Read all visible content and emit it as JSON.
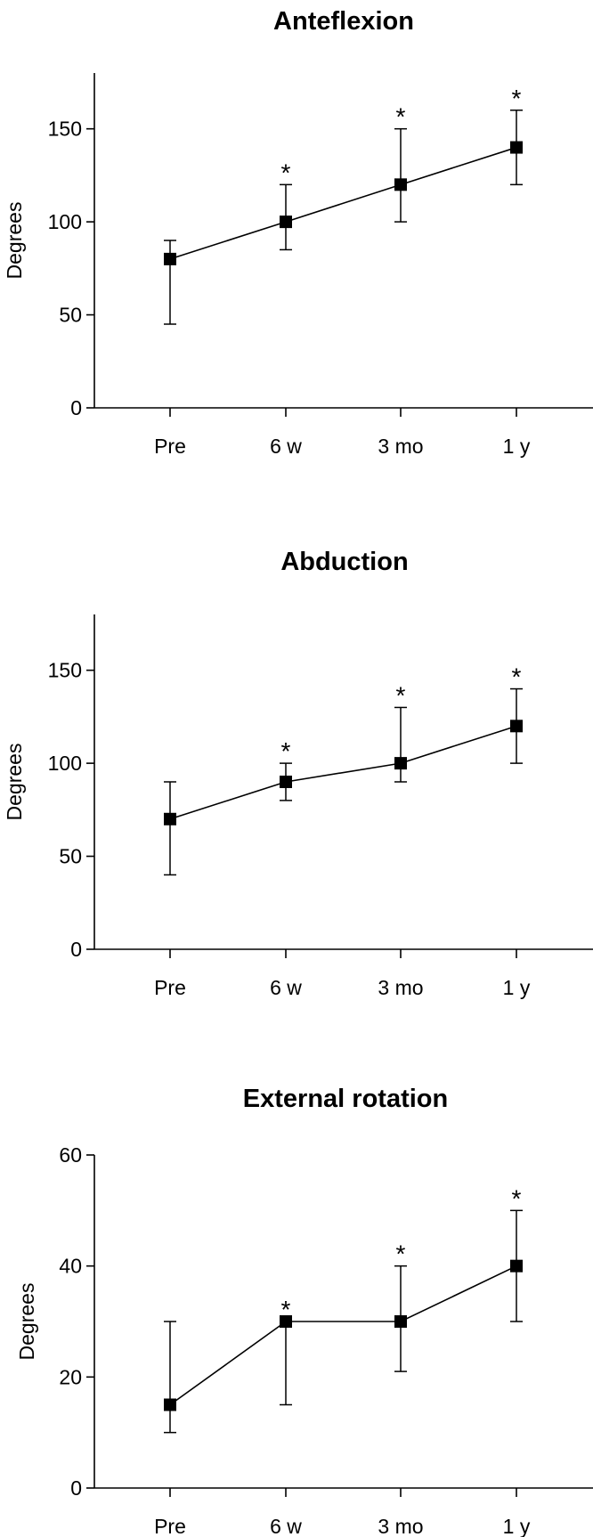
{
  "chart_data": [
    {
      "type": "line",
      "title": "Anteflexion",
      "ylabel": "Degrees",
      "xlabel": "",
      "categories": [
        "Pre",
        "6 w",
        "3 mo",
        "1 y"
      ],
      "ylim": [
        0,
        180
      ],
      "yticks": [
        0,
        50,
        100,
        150
      ],
      "grid": false,
      "series": [
        {
          "values": [
            80,
            100,
            120,
            140
          ],
          "error_low": [
            45,
            85,
            100,
            120
          ],
          "error_high": [
            90,
            120,
            150,
            160
          ]
        }
      ],
      "annotations": [
        "",
        "*",
        "*",
        "*"
      ]
    },
    {
      "type": "line",
      "title": "Abduction",
      "ylabel": "Degrees",
      "xlabel": "",
      "categories": [
        "Pre",
        "6 w",
        "3 mo",
        "1 y"
      ],
      "ylim": [
        0,
        180
      ],
      "yticks": [
        0,
        50,
        100,
        150
      ],
      "grid": false,
      "series": [
        {
          "values": [
            70,
            90,
            100,
            120
          ],
          "error_low": [
            40,
            80,
            90,
            100
          ],
          "error_high": [
            90,
            100,
            130,
            140
          ]
        }
      ],
      "annotations": [
        "",
        "*",
        "*",
        "*"
      ]
    },
    {
      "type": "line",
      "title": "External rotation",
      "ylabel": "Degrees",
      "xlabel": "",
      "categories": [
        "Pre",
        "6 w",
        "3 mo",
        "1 y"
      ],
      "ylim": [
        0,
        60
      ],
      "yticks": [
        0,
        20,
        40,
        60
      ],
      "grid": false,
      "series": [
        {
          "values": [
            15,
            30,
            30,
            40
          ],
          "error_low": [
            10,
            15,
            21,
            30
          ],
          "error_high": [
            30,
            30,
            40,
            50
          ]
        }
      ],
      "annotations": [
        "",
        "*",
        "*",
        "*"
      ]
    }
  ]
}
